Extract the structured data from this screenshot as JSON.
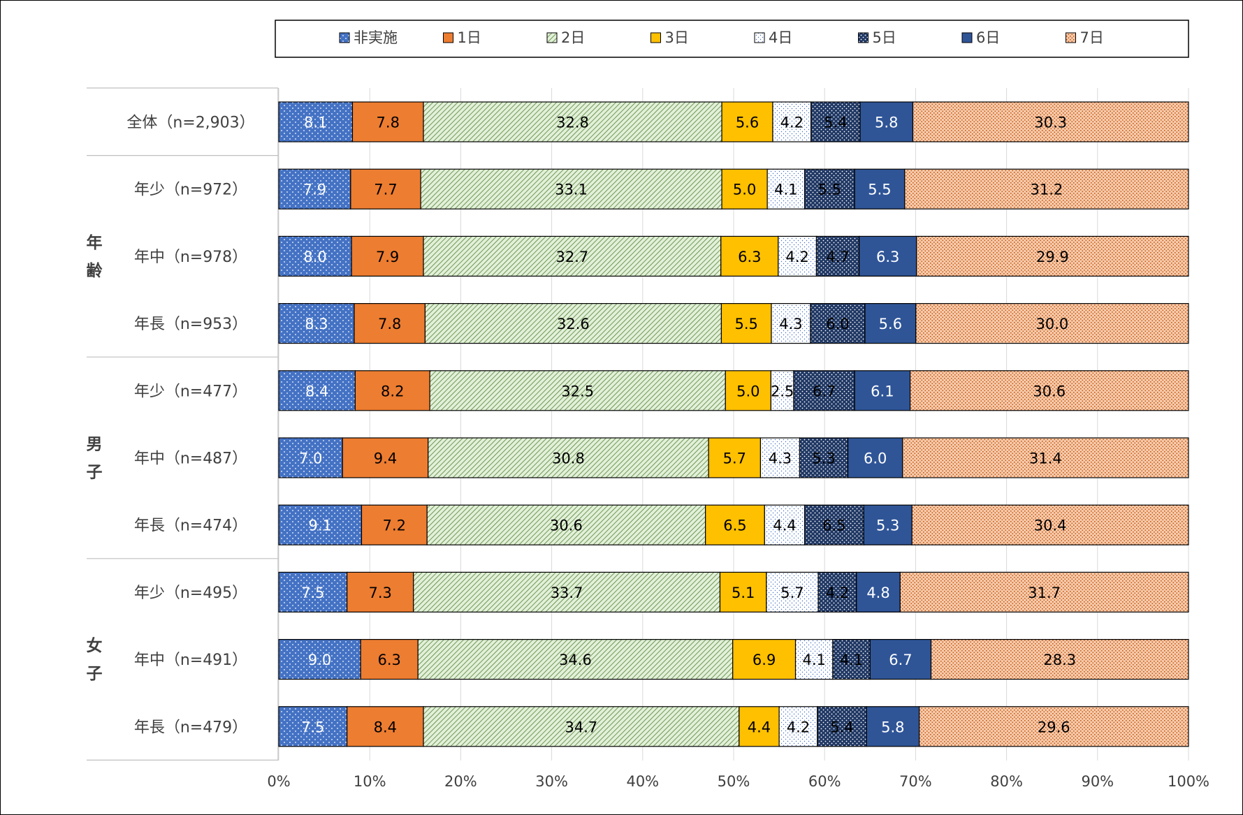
{
  "chart_data": {
    "type": "bar",
    "orientation": "horizontal",
    "stacked": true,
    "percent": true,
    "title": "",
    "xlabel": "",
    "ylabel": "",
    "xlim": [
      0,
      100
    ],
    "x_ticks": [
      "0%",
      "10%",
      "20%",
      "30%",
      "40%",
      "50%",
      "60%",
      "70%",
      "80%",
      "90%",
      "100%"
    ],
    "grid": true,
    "legend_position": "top",
    "groups": [
      {
        "label": "",
        "rows": [
          0
        ]
      },
      {
        "label": "年齢",
        "rows": [
          1,
          2,
          3
        ]
      },
      {
        "label": "男子",
        "rows": [
          4,
          5,
          6
        ]
      },
      {
        "label": "女子",
        "rows": [
          7,
          8,
          9
        ]
      }
    ],
    "categories": [
      "全体（n=2,903）",
      "年少（n=972）",
      "年中（n=978）",
      "年長（n=953）",
      "年少（n=477）",
      "年中（n=487）",
      "年長（n=474）",
      "年少（n=495）",
      "年中（n=491）",
      "年長（n=479）"
    ],
    "series": [
      {
        "name": "非実施",
        "color": "#4472C4",
        "pattern": "dots-white",
        "values": [
          8.1,
          7.9,
          8.0,
          8.3,
          8.4,
          7.0,
          9.1,
          7.5,
          9.0,
          7.5
        ]
      },
      {
        "name": "1日",
        "color": "#ED7D31",
        "pattern": "solid",
        "values": [
          7.8,
          7.7,
          7.9,
          7.8,
          8.2,
          9.4,
          7.2,
          7.3,
          6.3,
          8.4
        ]
      },
      {
        "name": "2日",
        "color": "#A9D18E",
        "pattern": "diagonal-hatch",
        "values": [
          32.8,
          33.1,
          32.7,
          32.6,
          32.5,
          30.8,
          30.6,
          33.7,
          34.6,
          34.7
        ]
      },
      {
        "name": "3日",
        "color": "#FFC000",
        "pattern": "solid",
        "values": [
          5.6,
          5.0,
          6.3,
          5.5,
          5.0,
          5.7,
          6.5,
          5.1,
          6.9,
          4.4
        ]
      },
      {
        "name": "4日",
        "color": "#FFFFFF",
        "pattern": "dots-blue",
        "values": [
          4.2,
          4.1,
          4.2,
          4.3,
          2.5,
          4.3,
          4.4,
          5.7,
          4.1,
          4.2
        ]
      },
      {
        "name": "5日",
        "color": "#203864",
        "pattern": "dots-white",
        "values": [
          5.4,
          5.5,
          4.7,
          6.0,
          6.7,
          5.3,
          6.5,
          4.2,
          4.1,
          5.4
        ]
      },
      {
        "name": "6日",
        "color": "#2F5597",
        "pattern": "solid",
        "values": [
          5.8,
          5.5,
          6.3,
          5.6,
          6.1,
          6.0,
          5.3,
          4.8,
          6.7,
          5.8
        ]
      },
      {
        "name": "7日",
        "color": "#F4B183",
        "pattern": "grid-dots",
        "values": [
          30.3,
          31.2,
          29.9,
          30.0,
          30.6,
          31.4,
          30.4,
          31.7,
          28.3,
          29.6
        ]
      }
    ]
  }
}
